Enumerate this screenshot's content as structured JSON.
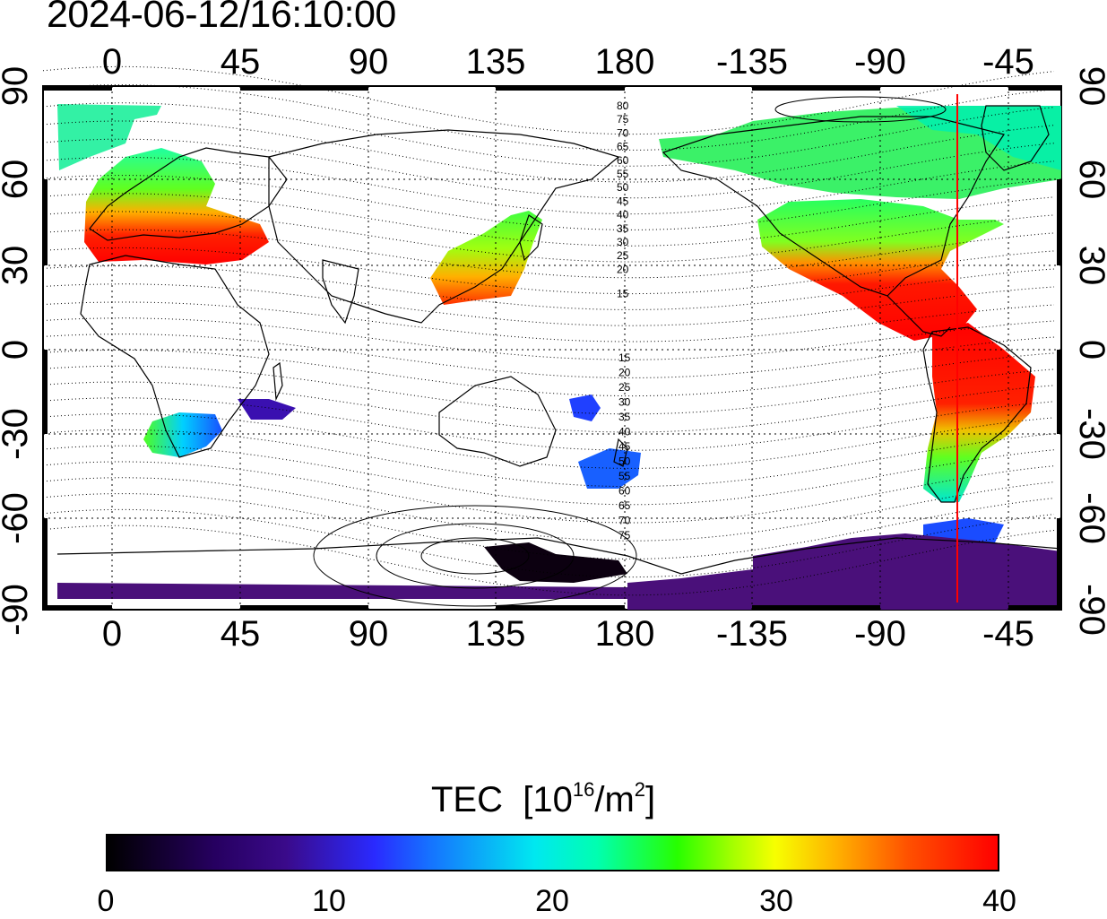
{
  "title": "2024-06-12/16:10:00",
  "map": {
    "lon_ticks_top": [
      "0",
      "45",
      "90",
      "135",
      "180",
      "-135",
      "-90",
      "-45"
    ],
    "lon_ticks_bottom": [
      "0",
      "45",
      "90",
      "135",
      "180",
      "-135",
      "-90",
      "-45"
    ],
    "lat_ticks_left": [
      "90",
      "60",
      "30",
      "0",
      "-30",
      "-60",
      "-90"
    ],
    "lat_ticks_right": [
      "90",
      "60",
      "30",
      "0",
      "-30",
      "-60",
      "-90"
    ],
    "magnetic_contour_labels_north": [
      "80",
      "75",
      "70",
      "65",
      "60",
      "55",
      "50",
      "45",
      "40",
      "35",
      "30",
      "25",
      "20",
      "15"
    ],
    "magnetic_contour_labels_south": [
      "15",
      "20",
      "25",
      "30",
      "35",
      "40",
      "45",
      "50",
      "55",
      "60",
      "65",
      "70",
      "75"
    ],
    "marker_line_color": "#ff0000",
    "marker_line_longitude": -60
  },
  "colorbar": {
    "label": "TEC",
    "unit_prefix": "[10",
    "unit_exp": "16",
    "unit_mid": "/m",
    "unit_exp2": "2",
    "unit_suffix": "]",
    "ticks": [
      "0",
      "10",
      "20",
      "30",
      "40"
    ],
    "range": [
      0,
      40
    ],
    "colors": [
      "#000000",
      "#3a0a8a",
      "#2a2aff",
      "#00e8f0",
      "#27ff00",
      "#f7ff00",
      "#ff5000",
      "#ff0000"
    ]
  }
}
